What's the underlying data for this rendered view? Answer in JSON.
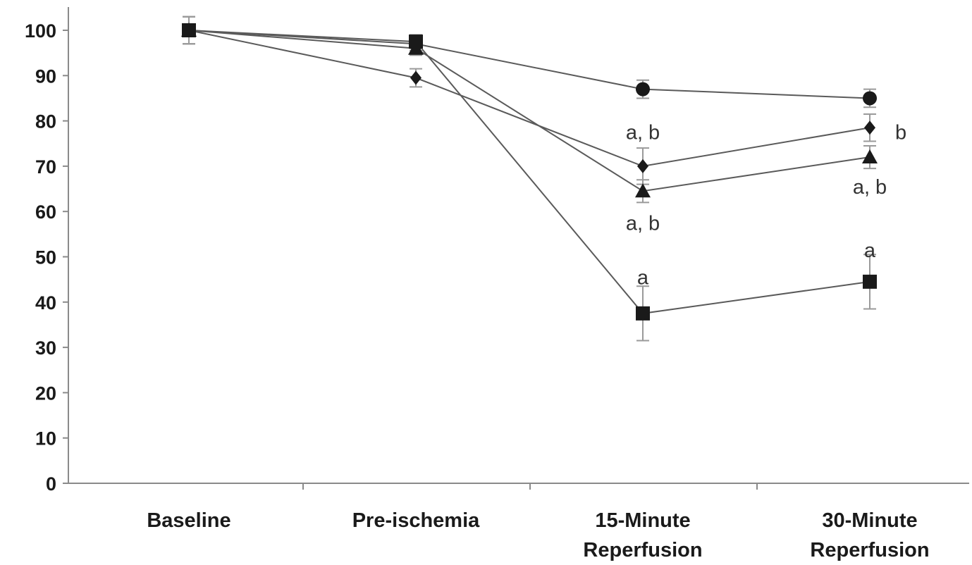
{
  "chart_data": {
    "type": "line",
    "categories": [
      [
        "Baseline"
      ],
      [
        "Pre-ischemia"
      ],
      [
        "15-Minute",
        "Reperfusion"
      ],
      [
        "30-Minute",
        "Reperfusion"
      ]
    ],
    "ylim": [
      0,
      100
    ],
    "yticks": [
      0,
      10,
      20,
      30,
      40,
      50,
      60,
      70,
      80,
      90,
      100
    ],
    "grid": false,
    "title": "",
    "xlabel": "",
    "ylabel": "",
    "series": [
      {
        "marker": "circle",
        "values": [
          100,
          97,
          87,
          85
        ],
        "errors": [
          3,
          1.5,
          2,
          2
        ]
      },
      {
        "marker": "diamond",
        "values": [
          100,
          89.5,
          70,
          78.5
        ],
        "errors": [
          3,
          2,
          4,
          3
        ]
      },
      {
        "marker": "triangle",
        "values": [
          100,
          96,
          64.5,
          72
        ],
        "errors": [
          3,
          1.5,
          2.5,
          2.5
        ]
      },
      {
        "marker": "square",
        "values": [
          100,
          97.5,
          37.5,
          44.5
        ],
        "errors": [
          3,
          1.5,
          6,
          6
        ]
      }
    ],
    "annotations": [
      {
        "category": 2,
        "value": 77.5,
        "text": "a, b"
      },
      {
        "category": 2,
        "value": 57.5,
        "text": "a, b"
      },
      {
        "category": 2,
        "value": 45.5,
        "text": "a"
      },
      {
        "category": 3,
        "value": 77.5,
        "text": "b",
        "side": "right"
      },
      {
        "category": 3,
        "value": 65.5,
        "text": "a, b"
      },
      {
        "category": 3,
        "value": 51.5,
        "text": "a"
      }
    ]
  }
}
